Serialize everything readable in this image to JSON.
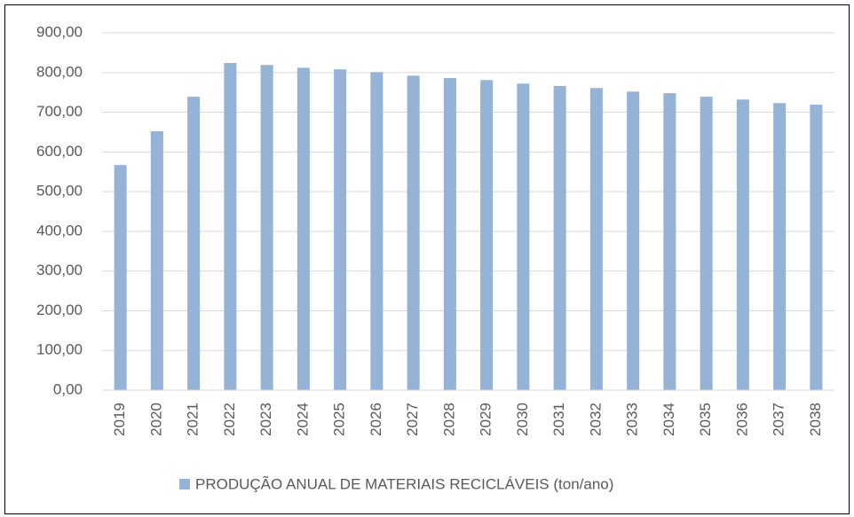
{
  "chart_data": {
    "type": "bar",
    "categories": [
      "2019",
      "2020",
      "2021",
      "2022",
      "2023",
      "2024",
      "2025",
      "2026",
      "2027",
      "2028",
      "2029",
      "2030",
      "2031",
      "2032",
      "2033",
      "2034",
      "2035",
      "2036",
      "2037",
      "2038"
    ],
    "series": [
      {
        "name": "PRODUÇÃO ANUAL DE MATERIAIS RECICLÁVEIS (ton/ano)",
        "color": "#95b3d7",
        "values": [
          567,
          652,
          739,
          824,
          819,
          812,
          808,
          801,
          792,
          786,
          781,
          772,
          766,
          761,
          752,
          748,
          739,
          732,
          723,
          719
        ]
      }
    ],
    "ylim": [
      0,
      900
    ],
    "yticks": [
      {
        "value": 0,
        "label": "0,00"
      },
      {
        "value": 100,
        "label": "100,00"
      },
      {
        "value": 200,
        "label": "200,00"
      },
      {
        "value": 300,
        "label": "300,00"
      },
      {
        "value": 400,
        "label": "400,00"
      },
      {
        "value": 500,
        "label": "500,00"
      },
      {
        "value": 600,
        "label": "600,00"
      },
      {
        "value": 700,
        "label": "700,00"
      },
      {
        "value": 800,
        "label": "800,00"
      },
      {
        "value": 900,
        "label": "900,00"
      }
    ],
    "grid": true,
    "legend": "bottom"
  }
}
